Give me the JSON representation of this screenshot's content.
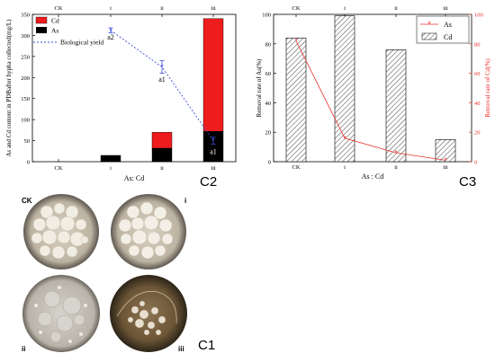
{
  "panel_labels": {
    "c2": "C2",
    "c3": "C3",
    "c1": "C1"
  },
  "chart_data": [
    {
      "id": "C2",
      "type": "bar",
      "stacked": true,
      "categories": [
        "CK",
        "i",
        "ii",
        "iii"
      ],
      "top_ticks": [
        "CK",
        "i",
        "ii",
        "iii"
      ],
      "xlabel": "As: Cd",
      "ylabel": "As and Cd content in PDBafter hypha collected(mg/L)",
      "ylim": [
        0,
        350
      ],
      "yticks": [
        0,
        50,
        100,
        150,
        200,
        250,
        300,
        350
      ],
      "series": [
        {
          "name": "As",
          "color": "#000000",
          "values": [
            0,
            15,
            32,
            72
          ]
        },
        {
          "name": "Cd",
          "color": "#ee1c1c",
          "values": [
            0,
            0,
            38,
            268
          ]
        }
      ],
      "line_series": {
        "name": "Biological yield",
        "color": "#3a4ddb",
        "categories": [
          "i",
          "ii",
          "iii"
        ],
        "values": [
          312,
          225,
          50
        ],
        "errors": [
          6,
          15,
          8
        ]
      },
      "annotations": [
        {
          "category": "i",
          "text": "a2",
          "y": 290
        },
        {
          "category": "ii",
          "text": "a1",
          "y": 190
        },
        {
          "category": "iii",
          "text": "a1",
          "y": 18
        }
      ],
      "legend_position": "top-left",
      "grid": false
    },
    {
      "id": "C3",
      "type": "bar",
      "categories": [
        "CK",
        "i",
        "ii",
        "iii"
      ],
      "top_ticks": [
        "CK",
        "i",
        "ii",
        "iii"
      ],
      "xlabel": "As : Cd",
      "ylabel_left": "Removal rate of As(%)",
      "ylabel_right": "Removal rate of Cd(%)",
      "ylim_left": [
        0,
        100
      ],
      "yticks_left": [
        0,
        20,
        40,
        60,
        80,
        100
      ],
      "ylim_right": [
        0,
        100
      ],
      "yticks_right": [
        0,
        20,
        40,
        60,
        80,
        100
      ],
      "bar_series": {
        "name": "Cd",
        "values": [
          84,
          99,
          76,
          15
        ],
        "pattern": "hatched"
      },
      "line_series": {
        "name": "As",
        "color": "#e8332e",
        "values": [
          82,
          16,
          6,
          1
        ]
      },
      "legend_position": "top-right",
      "grid": false
    }
  ],
  "photos": [
    {
      "label": "CK"
    },
    {
      "label": "i"
    },
    {
      "label": "ii"
    },
    {
      "label": "iii"
    }
  ]
}
